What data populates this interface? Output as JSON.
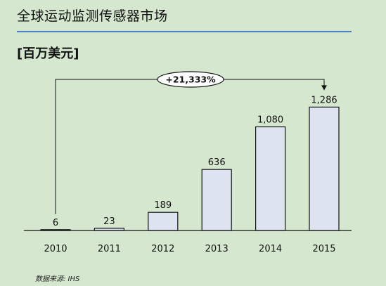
{
  "header": {
    "title": "全球运动监测传感器市场",
    "unit": "[百万美元]"
  },
  "footer": {
    "source": "数据来源: IHS"
  },
  "chart_data": {
    "type": "bar",
    "title": "全球运动监测传感器市场",
    "ylabel": "[百万美元]",
    "xlabel": "",
    "categories": [
      "2010",
      "2011",
      "2012",
      "2013",
      "2014",
      "2015"
    ],
    "values": [
      6,
      23,
      189,
      636,
      1080,
      1286
    ],
    "value_labels": [
      "6",
      "23",
      "189",
      "636",
      "1,080",
      "1,286"
    ],
    "ylim": [
      0,
      1450
    ],
    "grid": false,
    "annotation": {
      "text": "+21,333%",
      "from_category": "2010",
      "to_category": "2015"
    },
    "colors": {
      "bar_fill": "#dde3f0",
      "bar_stroke": "#111111",
      "background": "#d5e8cf",
      "rule": "#4f7ec9"
    }
  }
}
